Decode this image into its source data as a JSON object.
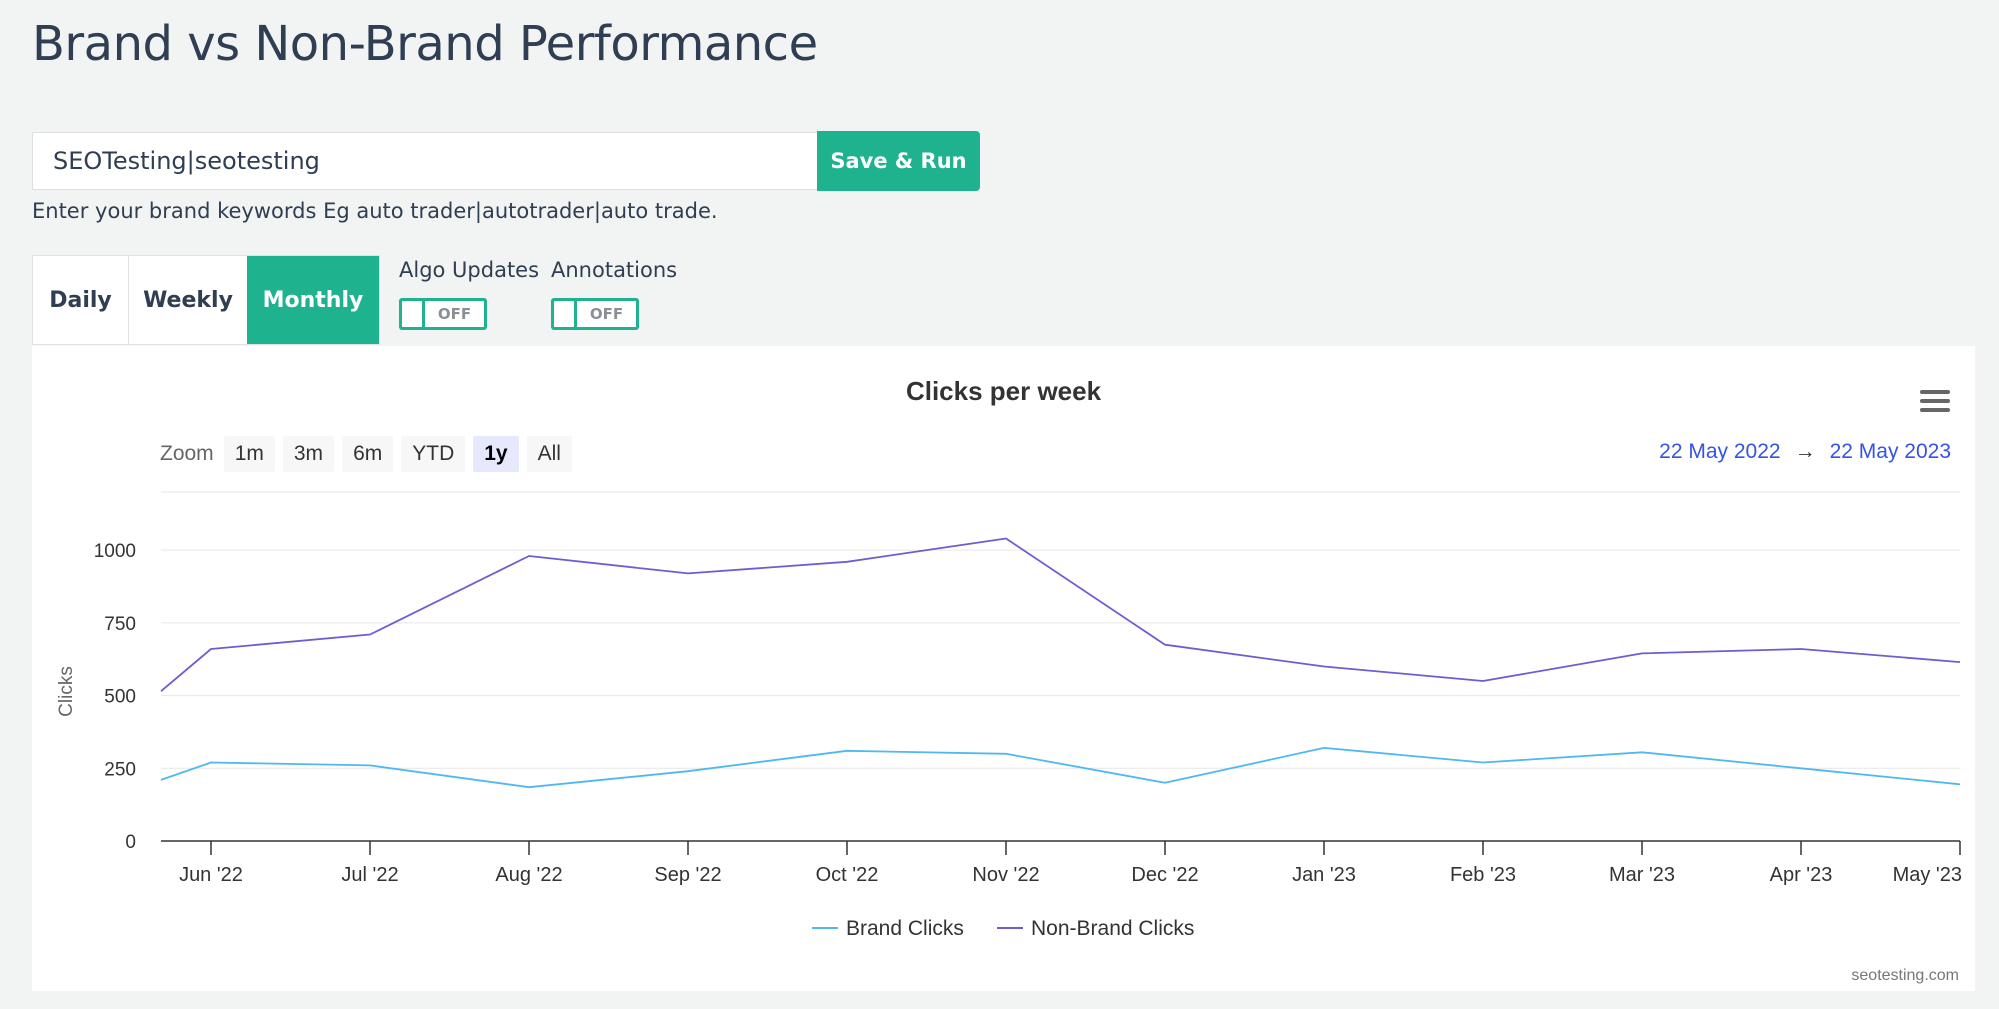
{
  "page": {
    "title": "Brand vs Non-Brand Performance"
  },
  "keywords": {
    "value": "SEOTesting|seotesting",
    "save_label": "Save & Run",
    "helper": "Enter your brand keywords Eg auto trader|autotrader|auto trade."
  },
  "period": {
    "daily": "Daily",
    "weekly": "Weekly",
    "monthly": "Monthly",
    "selected": "Monthly"
  },
  "toggles": {
    "algo": {
      "label": "Algo Updates",
      "state": "OFF"
    },
    "annotations": {
      "label": "Annotations",
      "state": "OFF"
    }
  },
  "zoom": {
    "label": "Zoom",
    "options": [
      "1m",
      "3m",
      "6m",
      "YTD",
      "1y",
      "All"
    ],
    "selected": "1y"
  },
  "range": {
    "from": "22 May 2022",
    "arrow": "→",
    "to": "22 May 2023"
  },
  "credit": "seotesting.com",
  "colors": {
    "accent": "#1fb28f",
    "brand": "#4fb8f0",
    "nonbrand": "#6a5fd0",
    "range_link": "#3553e6"
  },
  "chart_data": {
    "type": "line",
    "title": "Clicks per week",
    "ylabel": "Clicks",
    "xlabel": "",
    "ylim": [
      0,
      1000
    ],
    "y_ticks": [
      0,
      250,
      500,
      750,
      1000
    ],
    "x_tick_labels": [
      "Jun '22",
      "Jul '22",
      "Aug '22",
      "Sep '22",
      "Oct '22",
      "Nov '22",
      "Dec '22",
      "Jan '23",
      "Feb '23",
      "Mar '23",
      "Apr '23",
      "May '23"
    ],
    "x": [
      "22 May 2022",
      "Jun '22",
      "Jul '22",
      "Aug '22",
      "Sep '22",
      "Oct '22",
      "Nov '22",
      "Dec '22",
      "Jan '23",
      "Feb '23",
      "Mar '23",
      "Apr '23",
      "May '23"
    ],
    "grid": true,
    "legend": "bottom-center",
    "series": [
      {
        "name": "Brand Clicks",
        "color": "#4fb8f0",
        "values": [
          210,
          270,
          260,
          185,
          240,
          310,
          300,
          200,
          320,
          270,
          305,
          250,
          195
        ]
      },
      {
        "name": "Non-Brand Clicks",
        "color": "#6a5fd0",
        "values": [
          515,
          660,
          710,
          980,
          920,
          960,
          1040,
          675,
          600,
          550,
          645,
          660,
          615
        ]
      }
    ]
  }
}
